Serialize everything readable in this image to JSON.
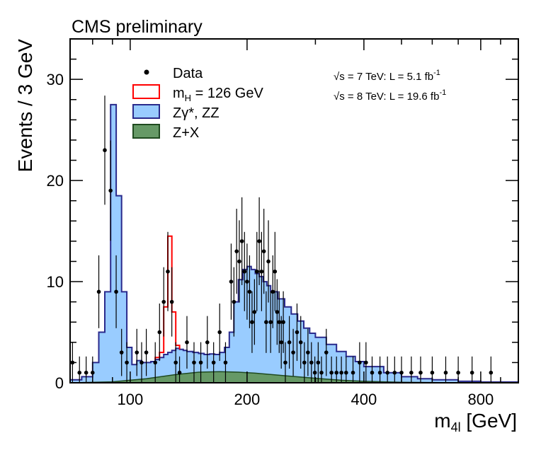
{
  "chart_data": {
    "type": "histogram",
    "title": "CMS preliminary",
    "xlabel_main": "m",
    "xlabel_sub": "4l",
    "xlabel_unit": " [GeV]",
    "ylabel": "Events / 3 GeV",
    "xscale": "log",
    "xlim": [
      70,
      1000
    ],
    "ylim": [
      0,
      34
    ],
    "x_ticks": [
      "100",
      "200",
      "400",
      "800"
    ],
    "x_tick_values": [
      100,
      200,
      400,
      800
    ],
    "y_ticks": [
      "0",
      "10",
      "20",
      "30"
    ],
    "y_tick_values": [
      0,
      10,
      20,
      30
    ],
    "legend": {
      "position": "top-left",
      "entries": {
        "data": "Data",
        "signal_main": "m",
        "signal_sub": "H",
        "signal_rest": " = 126 GeV",
        "zz": "Zγ*, ZZ",
        "zx": "Z+X"
      }
    },
    "lumi": {
      "line1_sqrt": "√",
      "line1_main": "s = 7 TeV: L =   5.1 fb",
      "line1_sup": "-1",
      "line2_sqrt": "√",
      "line2_main": "s = 8 TeV: L = 19.6 fb",
      "line2_sup": "-1"
    },
    "colors": {
      "zz_fill": "#99ccff",
      "zz_line": "#2a2a8c",
      "zx_fill": "#669966",
      "zx_line": "#1f4a1f",
      "signal_line": "#ff0000",
      "data": "#000000"
    },
    "zz_curve": [
      [
        70,
        0.3
      ],
      [
        75,
        0.6
      ],
      [
        80,
        2.0
      ],
      [
        83,
        5.0
      ],
      [
        86,
        9.0
      ],
      [
        89,
        27.5
      ],
      [
        92,
        18.5
      ],
      [
        95,
        9.0
      ],
      [
        98,
        3.5
      ],
      [
        101,
        1.8
      ],
      [
        104,
        2.2
      ],
      [
        107,
        2.0
      ],
      [
        110,
        2.0
      ],
      [
        113,
        2.1
      ],
      [
        116,
        2.3
      ],
      [
        119,
        2.5
      ],
      [
        122,
        2.8
      ],
      [
        125,
        3.0
      ],
      [
        128,
        3.2
      ],
      [
        131,
        3.4
      ],
      [
        134,
        3.3
      ],
      [
        137,
        3.2
      ],
      [
        140,
        3.1
      ],
      [
        145,
        3.0
      ],
      [
        150,
        2.9
      ],
      [
        155,
        2.8
      ],
      [
        160,
        2.85
      ],
      [
        165,
        2.8
      ],
      [
        170,
        3.0
      ],
      [
        175,
        3.5
      ],
      [
        180,
        5.0
      ],
      [
        185,
        8.0
      ],
      [
        190,
        10.2
      ],
      [
        195,
        11.2
      ],
      [
        200,
        11.5
      ],
      [
        205,
        11.2
      ],
      [
        210,
        10.8
      ],
      [
        215,
        10.5
      ],
      [
        220,
        10.0
      ],
      [
        225,
        9.6
      ],
      [
        230,
        9.0
      ],
      [
        240,
        8.3
      ],
      [
        250,
        7.5
      ],
      [
        260,
        6.8
      ],
      [
        270,
        6.1
      ],
      [
        280,
        5.4
      ],
      [
        290,
        4.9
      ],
      [
        300,
        4.5
      ],
      [
        320,
        3.8
      ],
      [
        340,
        3.1
      ],
      [
        360,
        2.6
      ],
      [
        380,
        2.1
      ],
      [
        400,
        1.6
      ],
      [
        450,
        1.0
      ],
      [
        500,
        0.6
      ],
      [
        550,
        0.4
      ],
      [
        600,
        0.3
      ],
      [
        700,
        0.15
      ],
      [
        800,
        0.08
      ],
      [
        1000,
        0.03
      ]
    ],
    "zx_curve": [
      [
        70,
        0.0
      ],
      [
        90,
        0.1
      ],
      [
        110,
        0.4
      ],
      [
        130,
        0.8
      ],
      [
        150,
        1.05
      ],
      [
        170,
        1.1
      ],
      [
        190,
        1.05
      ],
      [
        210,
        0.95
      ],
      [
        250,
        0.7
      ],
      [
        300,
        0.45
      ],
      [
        350,
        0.25
      ],
      [
        400,
        0.15
      ],
      [
        500,
        0.05
      ],
      [
        700,
        0.0
      ],
      [
        1000,
        0.0
      ]
    ],
    "signal_bins": [
      [
        116,
        119,
        2.5
      ],
      [
        119,
        122,
        3.0
      ],
      [
        122,
        125,
        7.5
      ],
      [
        125,
        128,
        14.5
      ],
      [
        128,
        131,
        7.0
      ],
      [
        131,
        134,
        3.7
      ]
    ],
    "data_points": [
      [
        71,
        2.0
      ],
      [
        74,
        1.0
      ],
      [
        77,
        1.0
      ],
      [
        80,
        1.0
      ],
      [
        83,
        9.0
      ],
      [
        86,
        23.0
      ],
      [
        89,
        19.0
      ],
      [
        92,
        9.0
      ],
      [
        95,
        3.0
      ],
      [
        98,
        2.0
      ],
      [
        104,
        3.0
      ],
      [
        107,
        2.0
      ],
      [
        110,
        3.0
      ],
      [
        116,
        2.0
      ],
      [
        119,
        5.0
      ],
      [
        122,
        8.0
      ],
      [
        125,
        11.0
      ],
      [
        128,
        8.0
      ],
      [
        131,
        2.0
      ],
      [
        134,
        1.0
      ],
      [
        140,
        4.0
      ],
      [
        146,
        2.0
      ],
      [
        152,
        2.0
      ],
      [
        158,
        4.0
      ],
      [
        164,
        2.0
      ],
      [
        170,
        5.0
      ],
      [
        176,
        2.0
      ],
      [
        182,
        10.0
      ],
      [
        185,
        8.0
      ],
      [
        188,
        13.0
      ],
      [
        191,
        12.0
      ],
      [
        194,
        14.0
      ],
      [
        197,
        11.0
      ],
      [
        200,
        10.0
      ],
      [
        203,
        9.0
      ],
      [
        206,
        6.0
      ],
      [
        209,
        7.0
      ],
      [
        212,
        11.0
      ],
      [
        215,
        14.0
      ],
      [
        218,
        11.0
      ],
      [
        221,
        13.0
      ],
      [
        224,
        6.0
      ],
      [
        227,
        12.0
      ],
      [
        230,
        6.0
      ],
      [
        233,
        9.0
      ],
      [
        236,
        11.0
      ],
      [
        239,
        7.0
      ],
      [
        242,
        6.0
      ],
      [
        245,
        4.0
      ],
      [
        248,
        6.0
      ],
      [
        251,
        2.0
      ],
      [
        257,
        4.0
      ],
      [
        263,
        3.0
      ],
      [
        269,
        5.0
      ],
      [
        275,
        4.0
      ],
      [
        281,
        2.0
      ],
      [
        287,
        3.0
      ],
      [
        293,
        2.0
      ],
      [
        299,
        1.0
      ],
      [
        305,
        2.0
      ],
      [
        311,
        1.0
      ],
      [
        320,
        3.0
      ],
      [
        330,
        1.0
      ],
      [
        340,
        1.0
      ],
      [
        350,
        1.0
      ],
      [
        360,
        1.0
      ],
      [
        375,
        1.0
      ],
      [
        390,
        2.0
      ],
      [
        405,
        2.0
      ],
      [
        420,
        1.0
      ],
      [
        440,
        1.0
      ],
      [
        460,
        1.0
      ],
      [
        480,
        1.0
      ],
      [
        500,
        1.0
      ],
      [
        530,
        1.0
      ],
      [
        560,
        1.0
      ],
      [
        600,
        1.0
      ],
      [
        650,
        1.0
      ],
      [
        700,
        1.0
      ],
      [
        760,
        1.0
      ],
      [
        850,
        1.0
      ]
    ]
  }
}
